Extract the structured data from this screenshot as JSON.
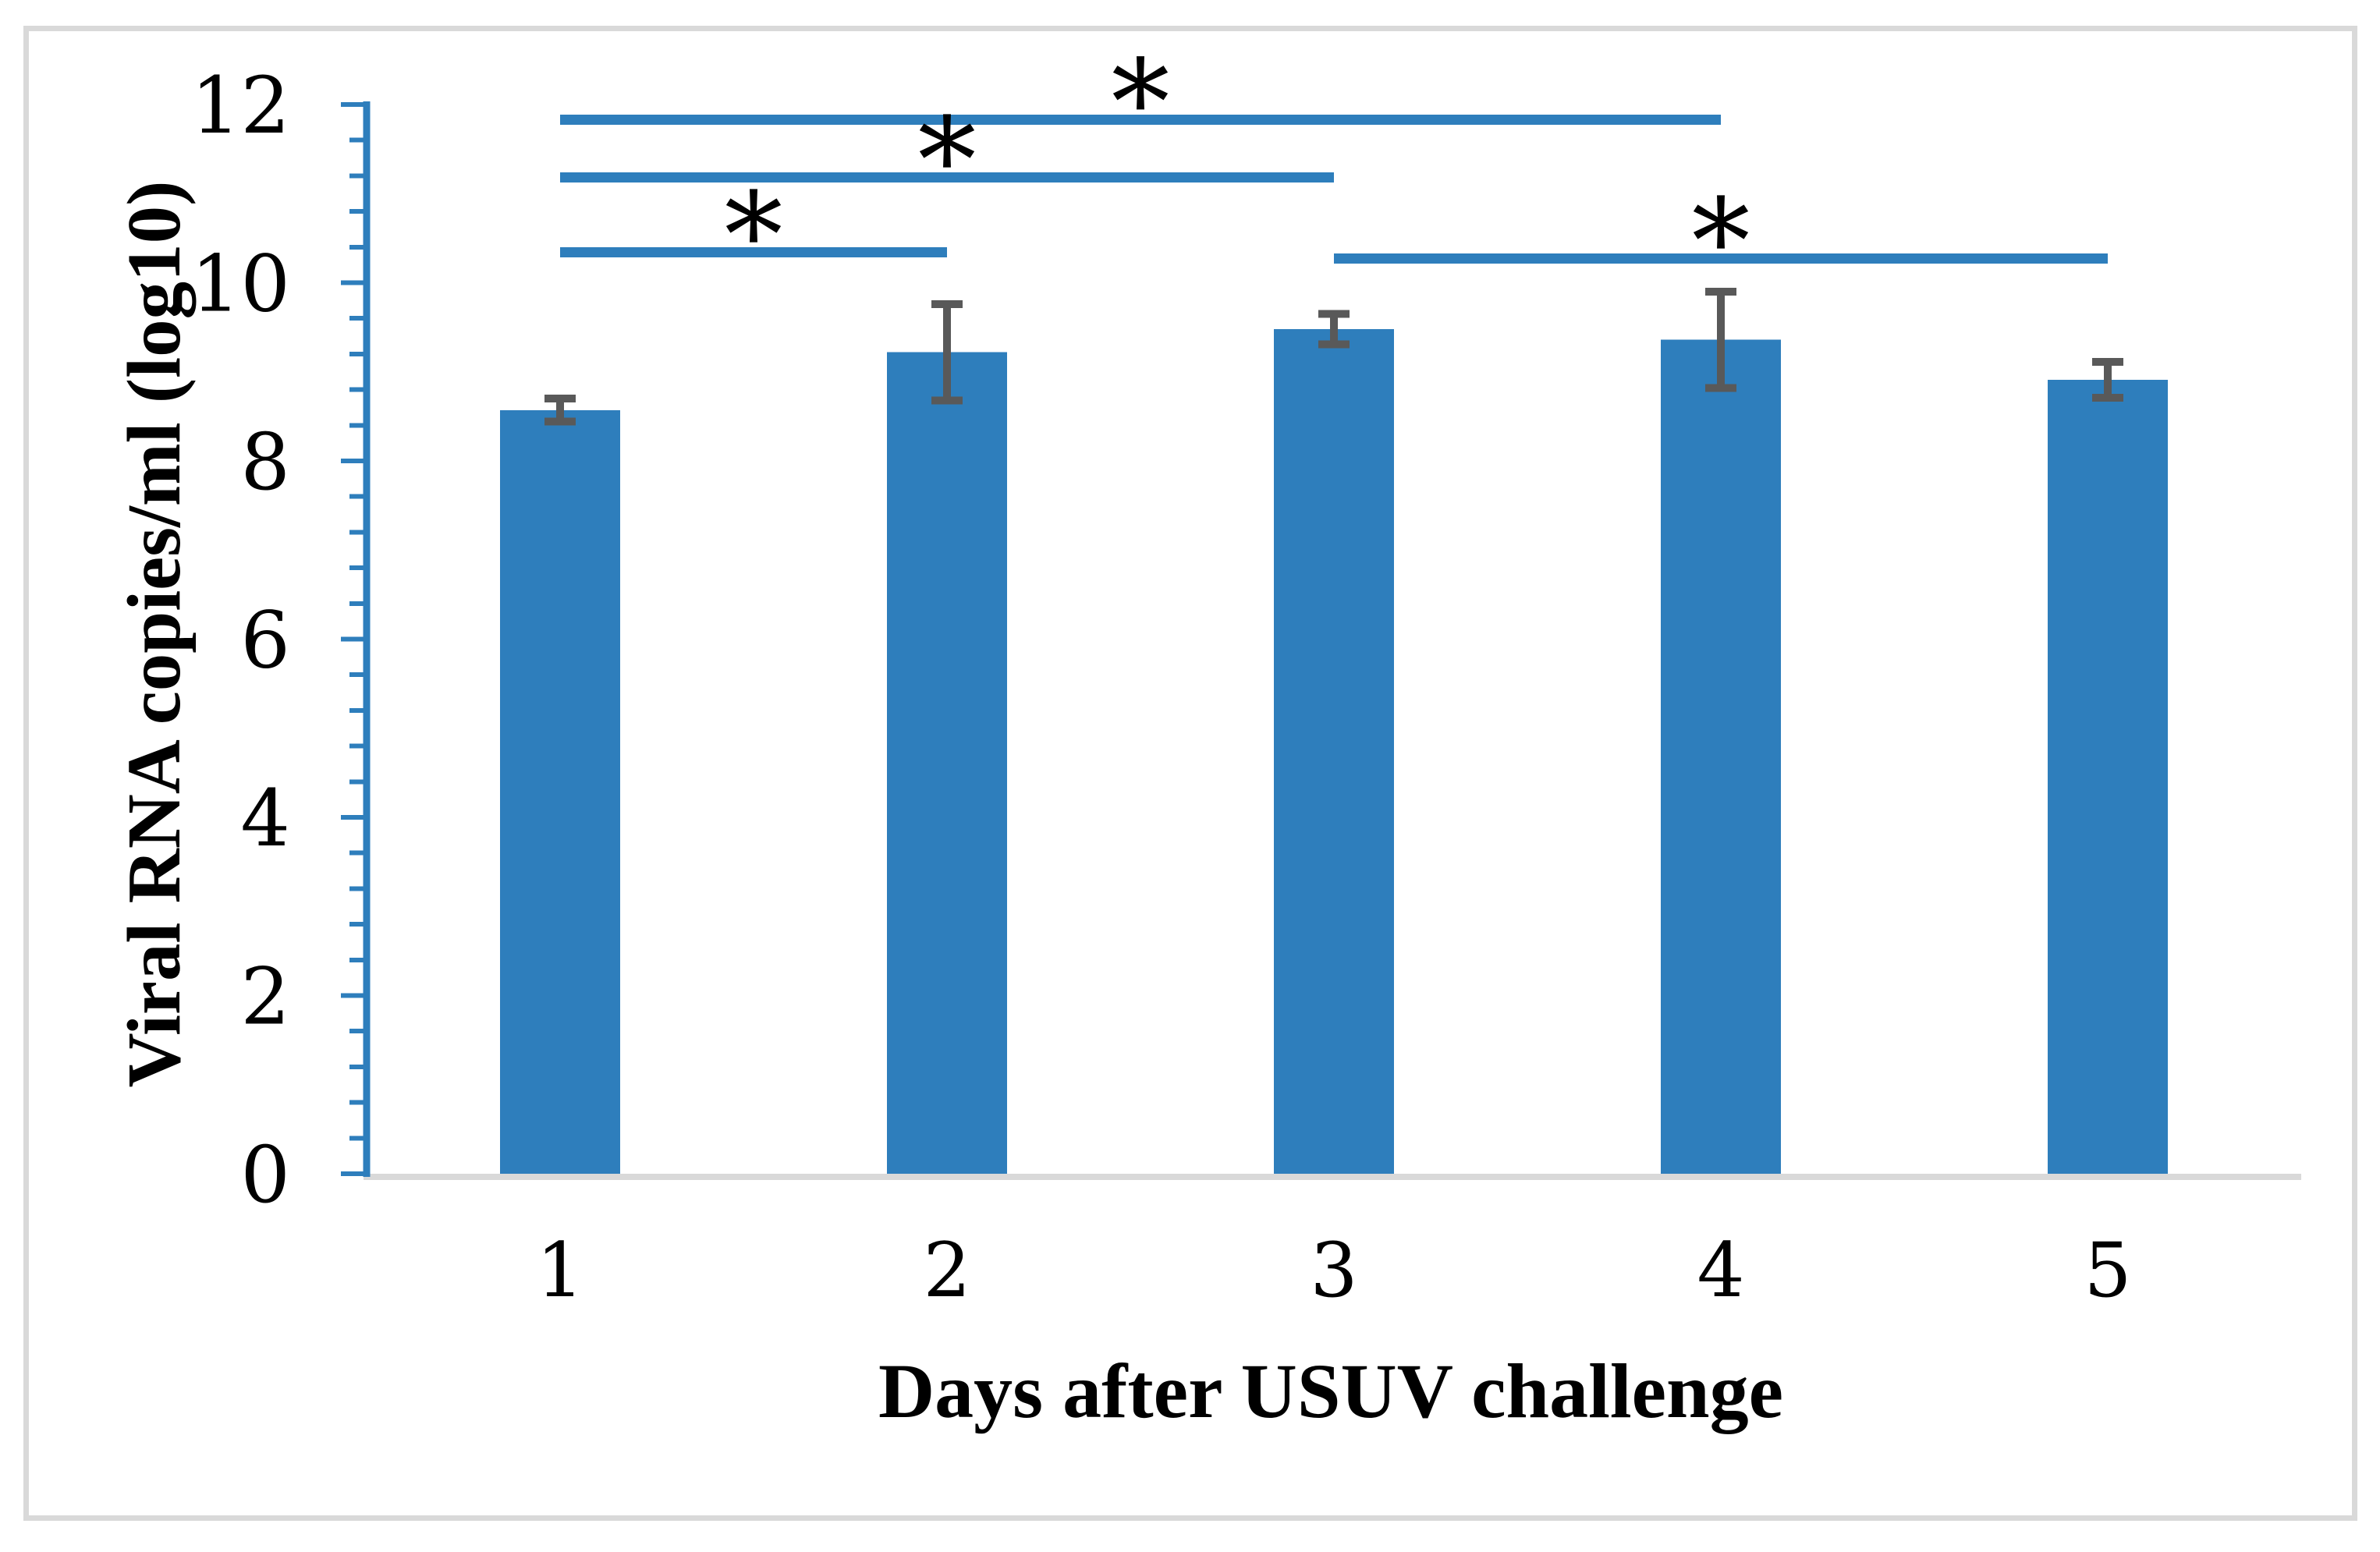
{
  "figure": {
    "background_color": "#FFFFFF",
    "border_color": "#D9D9D9"
  },
  "chart_data": {
    "type": "bar",
    "title": "",
    "xlabel": "Days after USUV challenge",
    "ylabel": "Viral RNA copies/ml (log10)",
    "categories": [
      "1",
      "2",
      "3",
      "4",
      "5"
    ],
    "series": [
      {
        "name": "Viral RNA copies/ml (log10)",
        "values": [
          8.57,
          9.22,
          9.48,
          9.36,
          8.91
        ],
        "error_bars": [
          0.13,
          0.54,
          0.17,
          0.54,
          0.2
        ]
      }
    ],
    "ylim": [
      0,
      12
    ],
    "y_major_ticks": [
      "0",
      "2",
      "4",
      "6",
      "8",
      "10",
      "12"
    ],
    "y_major_step": 2,
    "y_minor_step": 0.4,
    "grid": false,
    "legend_position": "none",
    "bar_color": "#2E7EBC",
    "axis_color": "#2E7EBC",
    "significance_color": "#2E7EBC",
    "error_bar_color": "#595959",
    "baseline_color": "#D9D9D9",
    "significance_lines": [
      {
        "from_category": "1",
        "to_category": "4",
        "level": 11.83,
        "label": "*"
      },
      {
        "from_category": "1",
        "to_category": "3",
        "level": 11.18,
        "label": "*"
      },
      {
        "from_category": "1",
        "to_category": "2",
        "level": 10.34,
        "label": "*"
      },
      {
        "from_category": "3",
        "to_category": "5",
        "level": 10.27,
        "label": "*"
      }
    ]
  }
}
